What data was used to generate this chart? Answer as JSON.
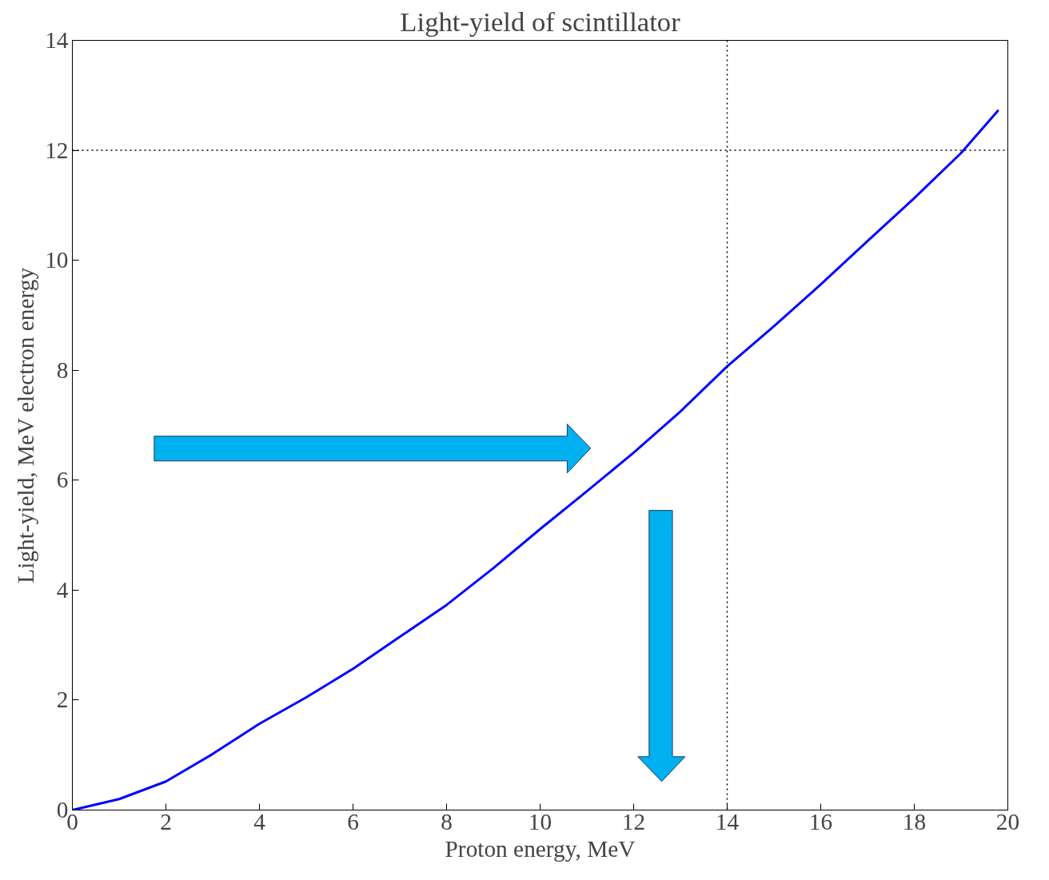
{
  "chart_data": {
    "type": "line",
    "title": "Light-yield of scintillator",
    "xlabel": "Proton energy, MeV",
    "ylabel": "Light-yield, MeV electron energy",
    "x": [
      0,
      1,
      2,
      3,
      4,
      5,
      6,
      7,
      8,
      9,
      10,
      11,
      12,
      13,
      14,
      15,
      16,
      17,
      18,
      19,
      19.8
    ],
    "series": [
      {
        "color": "#0000ff",
        "values": [
          0,
          0.2,
          0.52,
          1.02,
          1.57,
          2.05,
          2.57,
          3.15,
          3.73,
          4.4,
          5.11,
          5.8,
          6.5,
          7.25,
          8.07,
          8.8,
          9.56,
          10.35,
          11.13,
          11.95,
          12.73
        ]
      }
    ],
    "xlim": [
      0,
      20
    ],
    "ylim": [
      0,
      14
    ],
    "xticks": [
      0,
      2,
      4,
      6,
      8,
      10,
      12,
      14,
      16,
      18,
      20
    ],
    "yticks": [
      0,
      2,
      4,
      6,
      8,
      10,
      12,
      14
    ],
    "ref_lines": [
      {
        "axis": "x",
        "value": 14,
        "line_style": "dotted",
        "color": "#000000"
      },
      {
        "axis": "y",
        "value": 12,
        "line_style": "dotted",
        "color": "#000000"
      }
    ],
    "grid": false,
    "line_style": "solid"
  }
}
